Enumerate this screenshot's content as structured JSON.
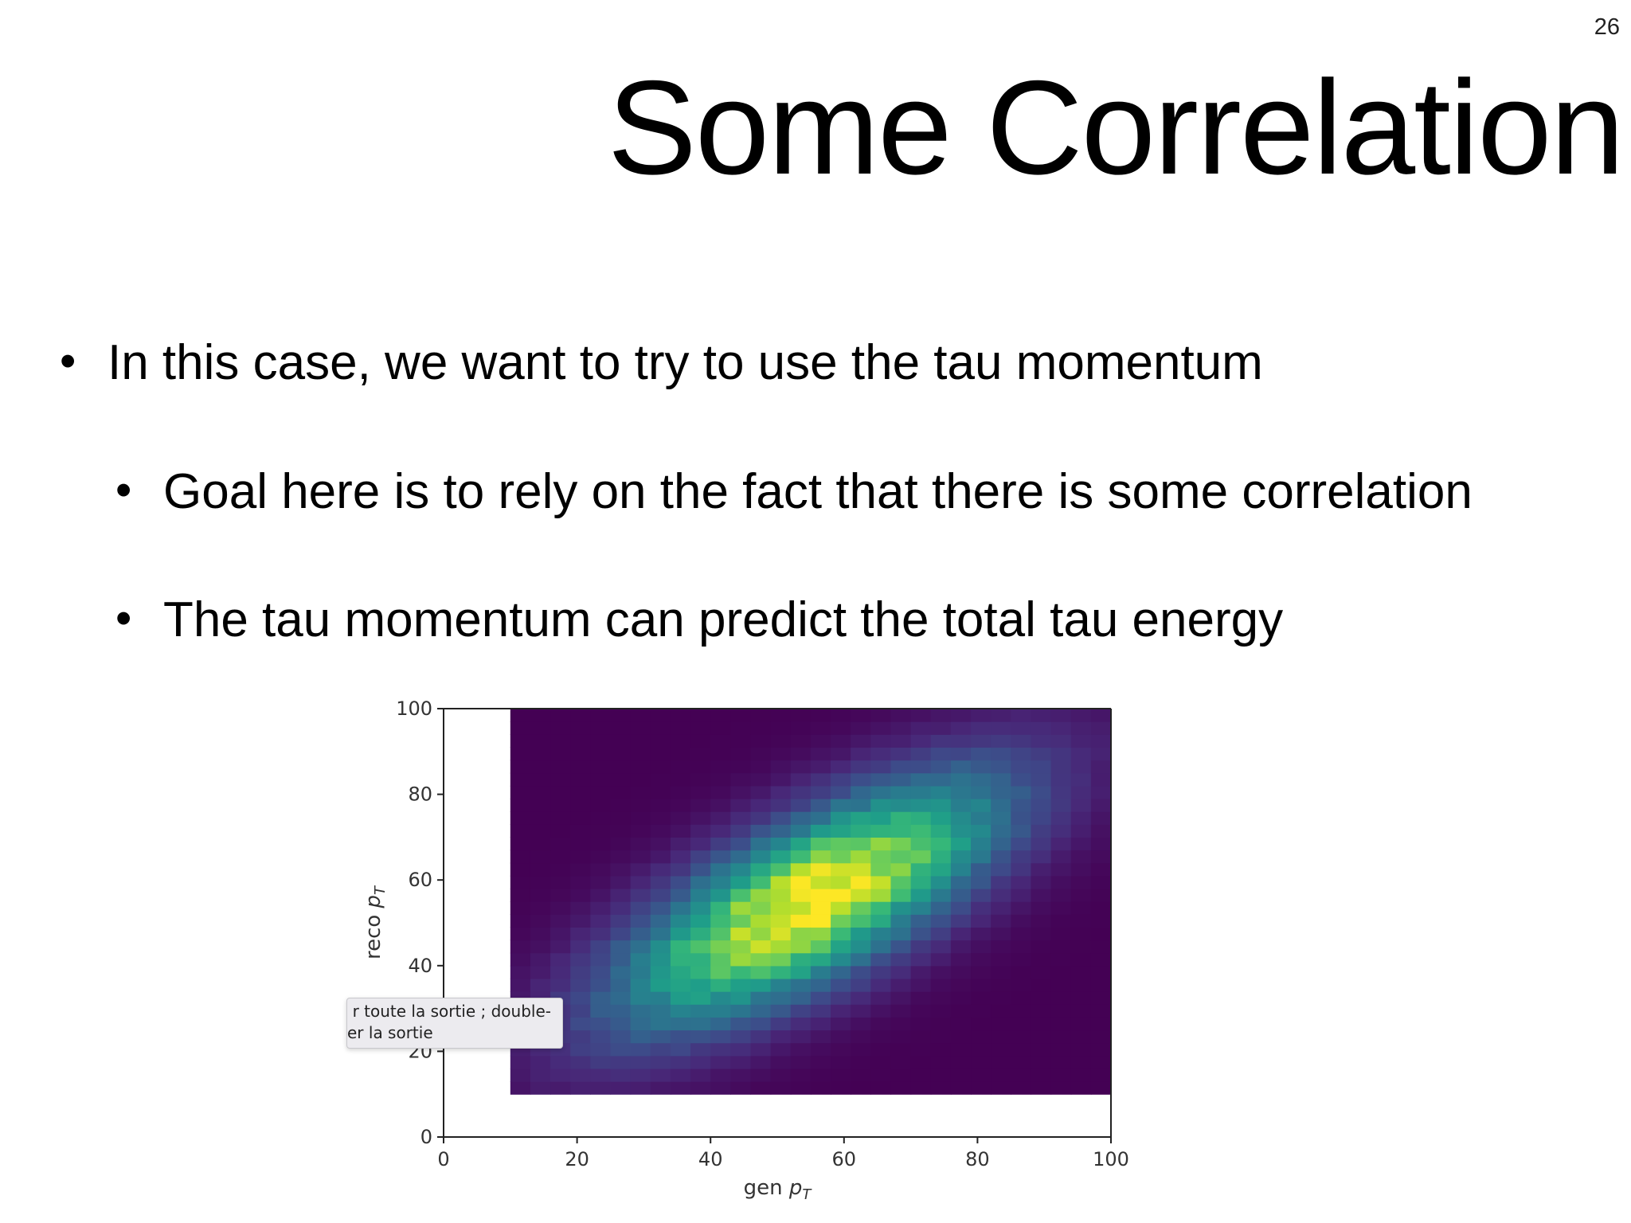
{
  "slide": {
    "number": "26",
    "title": "Some Correlation",
    "bullets": [
      "In this case, we want to try to use the tau momentum",
      "Goal here is to rely on the fact that there is some correlation",
      "The tau momentum can predict the total tau energy"
    ]
  },
  "tooltip": {
    "line1": "r toute la sortie ; double-",
    "line2": "er la sortie"
  },
  "chart_data": {
    "type": "heatmap",
    "title": "",
    "xlabel": "gen p_T",
    "ylabel": "reco p_T",
    "xlim": [
      0,
      100
    ],
    "ylim": [
      0,
      100
    ],
    "xticks": [
      "0",
      "20",
      "40",
      "60",
      "80",
      "100"
    ],
    "yticks": [
      "0",
      "20",
      "40",
      "60",
      "80",
      "100"
    ],
    "grid": false,
    "colormap": "viridis",
    "bins": {
      "x_min": 10,
      "x_max": 100,
      "y_min": 10,
      "y_max": 100,
      "count_x": 30,
      "count_y": 30
    },
    "density_peak": {
      "x": 55,
      "y": 55
    },
    "correlation_note": "positive correlation between gen and reco pT"
  }
}
